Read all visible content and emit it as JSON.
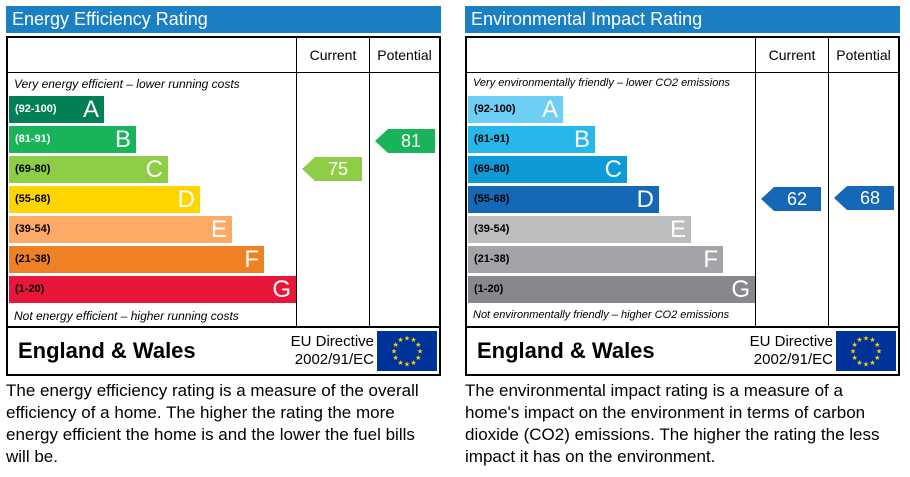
{
  "chart_data": [
    {
      "type": "bar",
      "title": "Energy Efficiency Rating",
      "columns": [
        "Current",
        "Potential"
      ],
      "top_caption": "Very energy efficient – lower running costs",
      "bottom_caption": "Not energy efficient – higher running costs",
      "bands": [
        {
          "range": "(92-100)",
          "letter": "A",
          "color": "#008054",
          "range_color": "#ffffff"
        },
        {
          "range": "(81-91)",
          "letter": "B",
          "color": "#19b459",
          "range_color": "#ffffff"
        },
        {
          "range": "(69-80)",
          "letter": "C",
          "color": "#8dce46",
          "range_color": "#000000"
        },
        {
          "range": "(55-68)",
          "letter": "D",
          "color": "#ffd500",
          "range_color": "#000000"
        },
        {
          "range": "(39-54)",
          "letter": "E",
          "color": "#fcaa65",
          "range_color": "#000000"
        },
        {
          "range": "(21-38)",
          "letter": "F",
          "color": "#ef8023",
          "range_color": "#000000"
        },
        {
          "range": "(1-20)",
          "letter": "G",
          "color": "#e9153b",
          "range_color": "#000000"
        }
      ],
      "current": {
        "value": 75,
        "band": "C",
        "color": "#8dce46"
      },
      "potential": {
        "value": 81,
        "band": "B",
        "color": "#19b459"
      },
      "footer": {
        "country": "England & Wales",
        "directive_line1": "EU Directive",
        "directive_line2": "2002/91/EC"
      },
      "description": "The energy efficiency rating is a measure of the overall efficiency of a home.  The higher the rating the more energy efficient the home is and the lower the fuel bills will be."
    },
    {
      "type": "bar",
      "title": "Environmental Impact Rating",
      "columns": [
        "Current",
        "Potential"
      ],
      "top_caption": "Very environmentally friendly – lower CO2 emissions",
      "bottom_caption": "Not environmentally friendly – higher CO2 emissions",
      "bands": [
        {
          "range": "(92-100)",
          "letter": "A",
          "color": "#6ecff6",
          "range_color": "#000000"
        },
        {
          "range": "(81-91)",
          "letter": "B",
          "color": "#27b8eb",
          "range_color": "#000000"
        },
        {
          "range": "(69-80)",
          "letter": "C",
          "color": "#0d9ad7",
          "range_color": "#000000"
        },
        {
          "range": "(55-68)",
          "letter": "D",
          "color": "#1568b5",
          "range_color": "#000000"
        },
        {
          "range": "(39-54)",
          "letter": "E",
          "color": "#bbbdbf",
          "range_color": "#000000"
        },
        {
          "range": "(21-38)",
          "letter": "F",
          "color": "#a2a4a7",
          "range_color": "#000000"
        },
        {
          "range": "(1-20)",
          "letter": "G",
          "color": "#86888b",
          "range_color": "#000000"
        }
      ],
      "current": {
        "value": 62,
        "band": "D",
        "color": "#1568b5"
      },
      "potential": {
        "value": 68,
        "band": "D",
        "color": "#1568b5"
      },
      "footer": {
        "country": "England & Wales",
        "directive_line1": "EU Directive",
        "directive_line2": "2002/91/EC"
      },
      "description": "The environmental impact rating is a measure of a home's impact on the environment in terms of carbon dioxide (CO2) emissions.  The higher the rating the less impact it has on the environment."
    }
  ]
}
